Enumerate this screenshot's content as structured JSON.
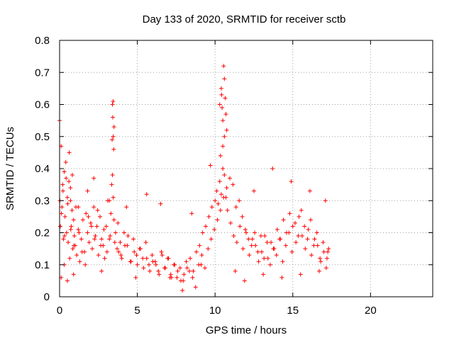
{
  "chart_data": {
    "type": "scatter",
    "title": "Day 133 of 2020, SRMTID for receiver sctb",
    "xlabel": "GPS time / hours",
    "ylabel": "SRMTID / TECUs",
    "xlim": [
      0,
      24
    ],
    "ylim": [
      0,
      0.8
    ],
    "xticks": [
      0,
      5,
      10,
      15,
      20
    ],
    "yticks": [
      0,
      0.1,
      0.2,
      0.3,
      0.4,
      0.5,
      0.6,
      0.7,
      0.8
    ],
    "xtick_labels": [
      "0",
      "5",
      "10",
      "15",
      "20"
    ],
    "ytick_labels": [
      "0",
      "0.1",
      "0.2",
      "0.3",
      "0.4",
      "0.5",
      "0.6",
      "0.7",
      "0.8"
    ],
    "grid": true,
    "marker": "+",
    "marker_color": "#ff0000",
    "series": [
      {
        "name": "SRMTID",
        "x": [
          0.0,
          0.05,
          0.1,
          0.15,
          0.2,
          0.25,
          0.3,
          0.35,
          0.4,
          0.45,
          0.5,
          0.55,
          0.6,
          0.65,
          0.7,
          0.75,
          0.8,
          0.85,
          0.9,
          0.95,
          1.0,
          1.1,
          1.2,
          1.3,
          1.4,
          1.5,
          1.6,
          1.7,
          1.8,
          1.9,
          2.0,
          2.1,
          2.2,
          2.3,
          2.4,
          2.5,
          2.6,
          2.7,
          2.8,
          2.9,
          3.0,
          3.1,
          3.2,
          3.3,
          3.35,
          3.4,
          3.45,
          3.5,
          3.6,
          3.7,
          3.8,
          3.9,
          4.0,
          4.2,
          4.4,
          4.6,
          4.8,
          5.0,
          5.2,
          5.4,
          5.6,
          5.8,
          6.0,
          6.2,
          6.4,
          6.6,
          6.8,
          7.0,
          7.2,
          7.4,
          7.6,
          7.8,
          8.0,
          8.2,
          8.4,
          8.6,
          8.8,
          9.0,
          9.2,
          9.4,
          9.6,
          9.8,
          10.0,
          10.1,
          10.2,
          10.3,
          10.4,
          10.5,
          10.6,
          10.7,
          10.8,
          11.0,
          11.2,
          11.4,
          11.6,
          11.8,
          12.0,
          12.2,
          12.4,
          12.6,
          12.8,
          13.0,
          13.2,
          13.4,
          13.6,
          13.8,
          14.0,
          14.2,
          14.4,
          14.6,
          14.8,
          15.0,
          15.2,
          15.4,
          15.6,
          15.8,
          16.0,
          16.2,
          16.4,
          16.6,
          16.8,
          17.0,
          17.2,
          17.3,
          0.02,
          0.12,
          0.22,
          0.32,
          0.42,
          0.52,
          0.62,
          0.72,
          0.82,
          0.92,
          1.05,
          1.25,
          1.45,
          1.65,
          1.85,
          2.05,
          2.25,
          2.45,
          2.65,
          2.85,
          3.05,
          3.25,
          3.55,
          3.75,
          3.95,
          4.15,
          4.35,
          4.55,
          4.75,
          4.95,
          5.15,
          5.35,
          5.55,
          5.75,
          5.95,
          6.15,
          6.35,
          6.55,
          6.75,
          6.95,
          7.15,
          7.35,
          7.55,
          7.75,
          7.95,
          8.15,
          8.35,
          8.55,
          8.75,
          8.95,
          9.15,
          9.35,
          9.55,
          9.75,
          9.95,
          10.15,
          10.35,
          10.55,
          10.75,
          10.95,
          11.15,
          11.35,
          11.55,
          11.75,
          11.95,
          12.15,
          12.35,
          12.55,
          12.75,
          12.95,
          13.15,
          13.35,
          13.55,
          13.75,
          13.95,
          14.15,
          14.35,
          14.55,
          14.75,
          14.95,
          15.15,
          15.35,
          15.55,
          15.75,
          15.95,
          16.15,
          16.35,
          16.55,
          16.75,
          16.95,
          17.15,
          17.25,
          3.4,
          3.42,
          3.45,
          3.48,
          3.5,
          3.38,
          3.44,
          10.4,
          10.45,
          10.5,
          10.55,
          10.6,
          10.65,
          10.7,
          10.75,
          10.5,
          10.6,
          10.35,
          10.3,
          10.42,
          0.1,
          0.3,
          0.5,
          0.7,
          0.9,
          1.2,
          1.8,
          2.2,
          2.7,
          3.2,
          4.3,
          4.9,
          5.6,
          6.5,
          7.1,
          7.9,
          8.5,
          9.1,
          9.7,
          11.3,
          11.9,
          12.5,
          13.1,
          13.7,
          14.3,
          14.9,
          15.5,
          16.1,
          16.7,
          17.1
        ],
        "y": [
          0.55,
          0.22,
          0.47,
          0.28,
          0.35,
          0.18,
          0.39,
          0.25,
          0.42,
          0.2,
          0.31,
          0.17,
          0.36,
          0.12,
          0.3,
          0.22,
          0.27,
          0.15,
          0.24,
          0.19,
          0.16,
          0.13,
          0.21,
          0.11,
          0.18,
          0.24,
          0.14,
          0.26,
          0.2,
          0.17,
          0.23,
          0.15,
          0.28,
          0.19,
          0.22,
          0.13,
          0.25,
          0.18,
          0.16,
          0.12,
          0.22,
          0.3,
          0.18,
          0.26,
          0.35,
          0.38,
          0.31,
          0.24,
          0.2,
          0.15,
          0.14,
          0.17,
          0.12,
          0.16,
          0.19,
          0.11,
          0.14,
          0.1,
          0.15,
          0.09,
          0.12,
          0.08,
          0.11,
          0.1,
          0.07,
          0.13,
          0.09,
          0.12,
          0.06,
          0.1,
          0.08,
          0.05,
          0.07,
          0.09,
          0.12,
          0.08,
          0.14,
          0.16,
          0.2,
          0.22,
          0.25,
          0.28,
          0.3,
          0.33,
          0.29,
          0.36,
          0.32,
          0.4,
          0.38,
          0.31,
          0.27,
          0.23,
          0.19,
          0.17,
          0.22,
          0.15,
          0.2,
          0.13,
          0.18,
          0.16,
          0.11,
          0.14,
          0.19,
          0.12,
          0.17,
          0.15,
          0.21,
          0.18,
          0.24,
          0.2,
          0.26,
          0.22,
          0.17,
          0.25,
          0.19,
          0.15,
          0.21,
          0.13,
          0.18,
          0.16,
          0.11,
          0.14,
          0.12,
          0.15,
          0.3,
          0.26,
          0.33,
          0.19,
          0.37,
          0.29,
          0.45,
          0.21,
          0.38,
          0.16,
          0.28,
          0.2,
          0.14,
          0.1,
          0.25,
          0.22,
          0.18,
          0.27,
          0.16,
          0.21,
          0.14,
          0.19,
          0.17,
          0.23,
          0.13,
          0.2,
          0.16,
          0.11,
          0.18,
          0.13,
          0.15,
          0.12,
          0.17,
          0.1,
          0.13,
          0.11,
          0.08,
          0.14,
          0.09,
          0.12,
          0.07,
          0.1,
          0.06,
          0.09,
          0.05,
          0.11,
          0.08,
          0.06,
          0.03,
          0.1,
          0.13,
          0.09,
          0.15,
          0.18,
          0.21,
          0.24,
          0.27,
          0.31,
          0.34,
          0.37,
          0.35,
          0.28,
          0.3,
          0.25,
          0.21,
          0.18,
          0.16,
          0.2,
          0.14,
          0.19,
          0.12,
          0.17,
          0.1,
          0.15,
          0.13,
          0.18,
          0.11,
          0.16,
          0.2,
          0.14,
          0.23,
          0.19,
          0.27,
          0.22,
          0.18,
          0.24,
          0.16,
          0.2,
          0.12,
          0.17,
          0.09,
          0.14,
          0.6,
          0.56,
          0.5,
          0.46,
          0.53,
          0.49,
          0.61,
          0.65,
          0.59,
          0.55,
          0.72,
          0.68,
          0.62,
          0.57,
          0.52,
          0.47,
          0.5,
          0.44,
          0.6,
          0.63,
          0.06,
          0.1,
          0.05,
          0.34,
          0.07,
          0.28,
          0.33,
          0.37,
          0.08,
          0.3,
          0.28,
          0.06,
          0.32,
          0.29,
          0.06,
          0.02,
          0.26,
          0.1,
          0.41,
          0.08,
          0.05,
          0.33,
          0.07,
          0.4,
          0.06,
          0.36,
          0.07,
          0.33,
          0.08,
          0.3
        ]
      }
    ]
  }
}
